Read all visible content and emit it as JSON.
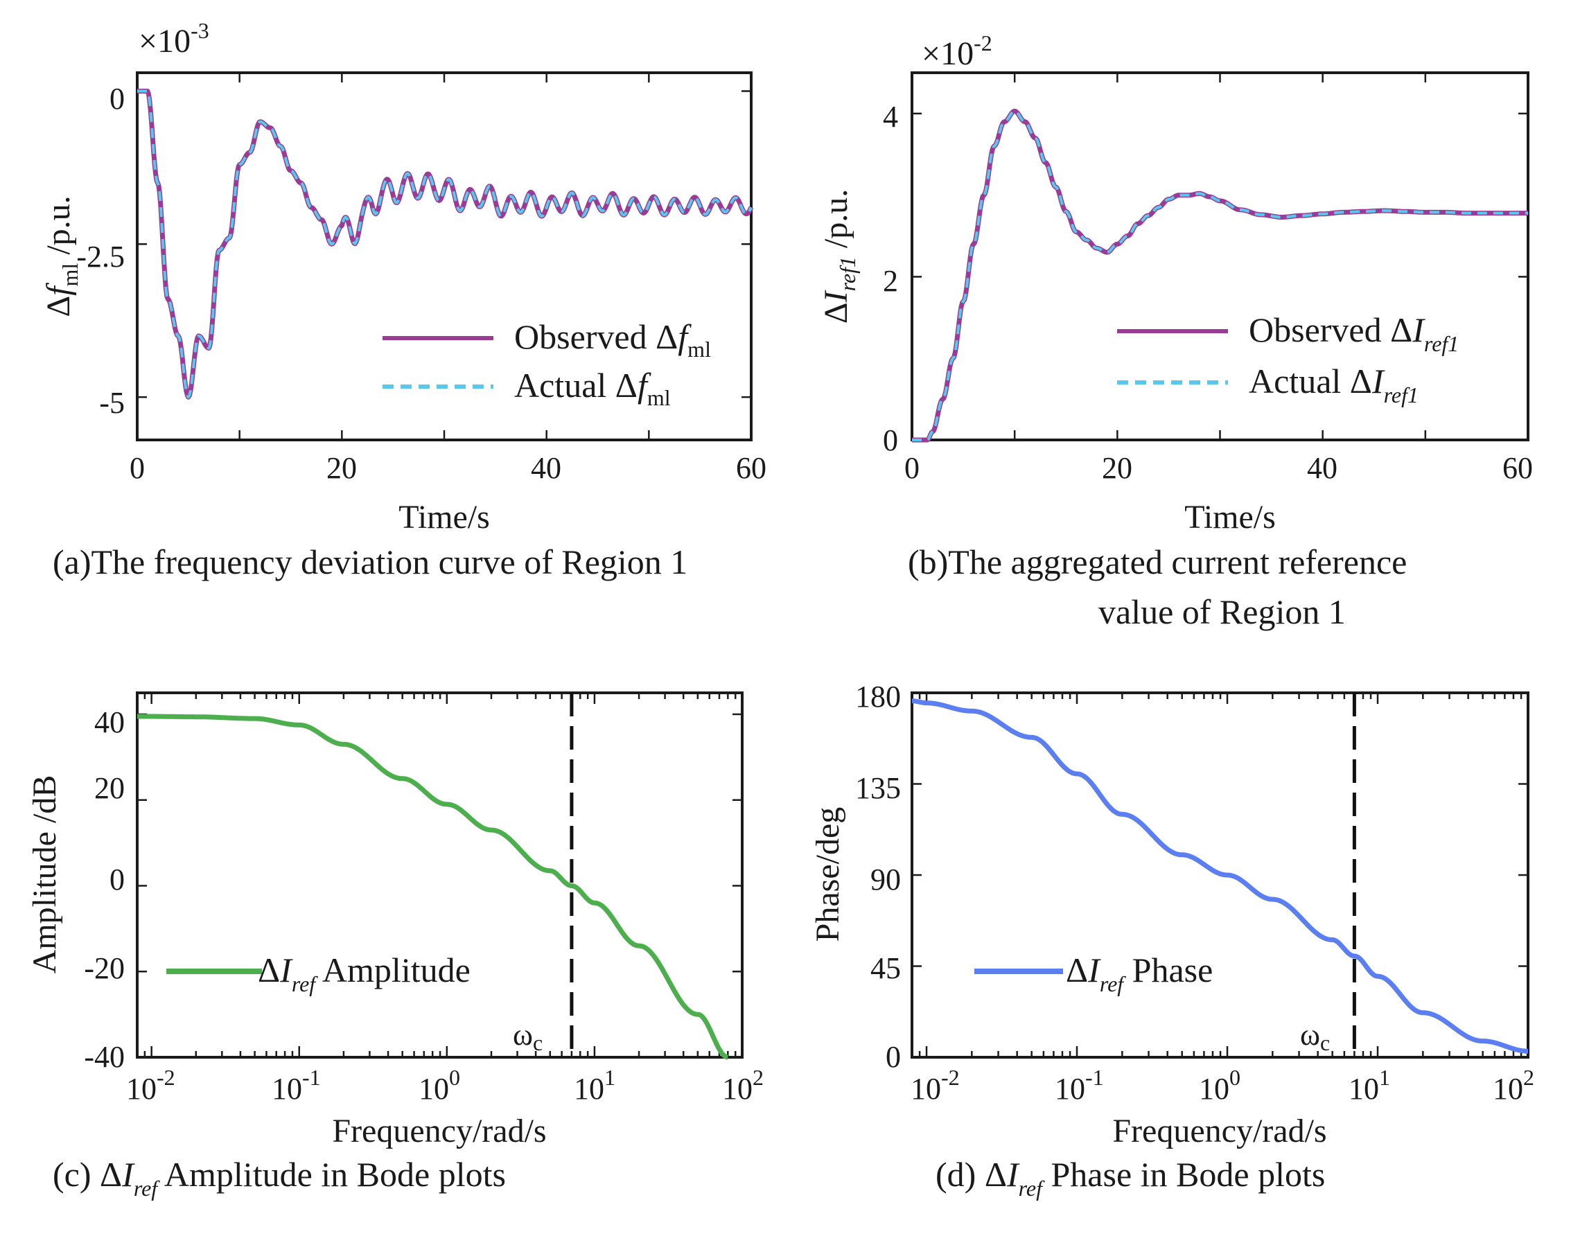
{
  "figure": {
    "captions": {
      "a": "(a)The frequency deviation curve of Region 1",
      "b_line1": "(b)The aggregated current reference",
      "b_line2": "value of Region 1",
      "c_pre": "(c) ",
      "c_post": " Amplitude in Bode plots",
      "d_pre": "(d) ",
      "d_post": " Phase in Bode plots"
    },
    "symbols": {
      "delta": "Δ",
      "f": "f",
      "ml": "ml",
      "I": "I",
      "ref": "ref",
      "ref1": "ref1",
      "omega_c": "ω",
      "c_sub": "c"
    }
  },
  "chart_data": [
    {
      "id": "a",
      "type": "line",
      "title": "(a)The frequency deviation curve of Region 1",
      "xlabel": "Time/s",
      "ylabel": "Δf_ml /p.u.",
      "ylabel_suffix": "/p.u.",
      "y_multiplier": "×10",
      "y_multiplier_exp": "-3",
      "xlim": [
        0,
        60
      ],
      "ylim": [
        -5.7,
        0.3
      ],
      "xticks": [
        "0",
        "20",
        "40",
        "60"
      ],
      "yticks": [
        "0",
        "-2.5",
        "-5"
      ],
      "yticks_values": [
        0,
        -2.5,
        -5
      ],
      "xticks_values": [
        0,
        20,
        40,
        60
      ],
      "legend": {
        "position": "lower-right",
        "entries": [
          "Observed",
          "Actual"
        ]
      },
      "series": [
        {
          "name": "Observed Δf_ml",
          "color": "#9a3c95",
          "style": "solid",
          "x": [
            0,
            1,
            2,
            3,
            4,
            5,
            6,
            7,
            8,
            9,
            10,
            11,
            12,
            13,
            14,
            15,
            16,
            17,
            18,
            19,
            20,
            21,
            22,
            23,
            24,
            25,
            26,
            27,
            28,
            29,
            30,
            32,
            34,
            36,
            38,
            40,
            42,
            44,
            46,
            48,
            50,
            52,
            54,
            56,
            58,
            60
          ],
          "y": [
            0,
            0,
            -1.5,
            -3.4,
            -4.0,
            -5.0,
            -4.0,
            -4.2,
            -2.6,
            -2.4,
            -1.2,
            -1.0,
            -0.5,
            -0.6,
            -0.9,
            -1.3,
            -1.5,
            -1.9,
            -2.1,
            -2.5,
            -2.2,
            -2.4,
            -2.0,
            -1.9,
            -1.6,
            -1.7,
            -1.5,
            -1.6,
            -1.5,
            -1.6,
            -1.6,
            -1.8,
            -1.7,
            -1.9,
            -1.8,
            -1.9,
            -1.8,
            -1.9,
            -1.8,
            -1.9,
            -1.85,
            -1.9,
            -1.85,
            -1.9,
            -1.85,
            -1.9
          ],
          "ripple": 0.22
        },
        {
          "name": "Actual Δf_ml",
          "color": "#5ac8ec",
          "style": "dashed",
          "same_as": "Observed Δf_ml"
        }
      ]
    },
    {
      "id": "b",
      "type": "line",
      "title": "(b)The aggregated current reference value of Region 1",
      "xlabel": "Time/s",
      "ylabel": "ΔI_ref1 /p.u.",
      "ylabel_suffix": "/p.u.",
      "y_multiplier": "×10",
      "y_multiplier_exp": "-2",
      "xlim": [
        0,
        60
      ],
      "ylim": [
        0,
        4.5
      ],
      "xticks": [
        "0",
        "20",
        "40",
        "60"
      ],
      "yticks": [
        "0",
        "2",
        "4"
      ],
      "yticks_values": [
        0,
        2,
        4
      ],
      "xticks_values": [
        0,
        20,
        40,
        60
      ],
      "legend": {
        "position": "center-right",
        "entries": [
          "Observed",
          "Actual"
        ]
      },
      "series": [
        {
          "name": "Observed ΔI_ref1",
          "color": "#9a3c95",
          "style": "solid",
          "x": [
            0,
            1.5,
            2,
            3,
            4,
            5,
            6,
            7,
            8,
            9,
            10,
            11,
            12,
            13,
            14,
            15,
            16,
            17,
            18,
            19,
            20,
            21,
            22,
            23,
            24,
            25,
            26,
            27,
            28,
            29,
            30,
            32,
            34,
            36,
            38,
            40,
            42,
            44,
            46,
            48,
            50,
            52,
            54,
            56,
            58,
            60
          ],
          "y": [
            0,
            0,
            0.1,
            0.5,
            1.0,
            1.7,
            2.4,
            3.0,
            3.6,
            3.9,
            4.03,
            3.9,
            3.7,
            3.4,
            3.1,
            2.8,
            2.55,
            2.45,
            2.35,
            2.3,
            2.4,
            2.5,
            2.65,
            2.75,
            2.85,
            2.95,
            3.0,
            3.0,
            3.02,
            2.98,
            2.93,
            2.82,
            2.76,
            2.73,
            2.75,
            2.77,
            2.79,
            2.8,
            2.81,
            2.8,
            2.79,
            2.79,
            2.78,
            2.78,
            2.78,
            2.78
          ]
        },
        {
          "name": "Actual ΔI_ref1",
          "color": "#5ac8ec",
          "style": "dashed",
          "same_as": "Observed ΔI_ref1"
        }
      ]
    },
    {
      "id": "c",
      "type": "line",
      "title": "(c) ΔI_ref Amplitude in Bode plots",
      "xlabel": "Frequency/rad/s",
      "ylabel": "Amplitude /dB",
      "xscale": "log",
      "xlim": [
        0.008,
        100
      ],
      "ylim": [
        -40,
        45
      ],
      "xticks": [
        "10",
        "10",
        "10",
        "10",
        "10"
      ],
      "xtick_exps": [
        "-2",
        "-1",
        "0",
        "1",
        "2"
      ],
      "xticks_values": [
        0.01,
        0.1,
        1,
        10,
        100
      ],
      "yticks": [
        "40",
        "20",
        "0",
        "-20",
        "-40"
      ],
      "yticks_values": [
        40,
        20,
        0,
        -20,
        -40
      ],
      "crossover": {
        "x": 7,
        "label": "ω",
        "label_sub": "c"
      },
      "legend": {
        "position": "lower-left",
        "entries": [
          "Amplitude"
        ]
      },
      "series": [
        {
          "name": "ΔI_ref Amplitude",
          "color": "#4cae4c",
          "style": "solid",
          "x": [
            0.008,
            0.01,
            0.02,
            0.05,
            0.1,
            0.2,
            0.5,
            1,
            2,
            5,
            7,
            10,
            20,
            50,
            80
          ],
          "y": [
            39.5,
            39.5,
            39.4,
            39.0,
            37.5,
            33,
            25,
            19,
            13,
            3.5,
            0,
            -4,
            -14,
            -30,
            -40
          ]
        }
      ]
    },
    {
      "id": "d",
      "type": "line",
      "title": "(d) ΔI_ref Phase in Bode plots",
      "xlabel": "Frequency/rad/s",
      "ylabel": "Phase/deg",
      "xscale": "log",
      "xlim": [
        0.008,
        100
      ],
      "ylim": [
        0,
        180
      ],
      "xticks": [
        "10",
        "10",
        "10",
        "10",
        "10"
      ],
      "xtick_exps": [
        "-2",
        "-1",
        "0",
        "1",
        "2"
      ],
      "xticks_values": [
        0.01,
        0.1,
        1,
        10,
        100
      ],
      "yticks": [
        "180",
        "135",
        "90",
        "45",
        "0"
      ],
      "yticks_values": [
        180,
        135,
        90,
        45,
        0
      ],
      "crossover": {
        "x": 7,
        "label": "ω",
        "label_sub": "c"
      },
      "legend": {
        "position": "lower-left",
        "entries": [
          "Phase"
        ]
      },
      "series": [
        {
          "name": "ΔI_ref Phase",
          "color": "#5b7ff0",
          "style": "solid",
          "x": [
            0.008,
            0.01,
            0.02,
            0.05,
            0.1,
            0.2,
            0.5,
            1,
            2,
            5,
            7,
            10,
            20,
            50,
            100
          ],
          "y": [
            176,
            175,
            171,
            158,
            140,
            120,
            100,
            90,
            78,
            58,
            50,
            40,
            22,
            8,
            3
          ]
        }
      ]
    }
  ]
}
